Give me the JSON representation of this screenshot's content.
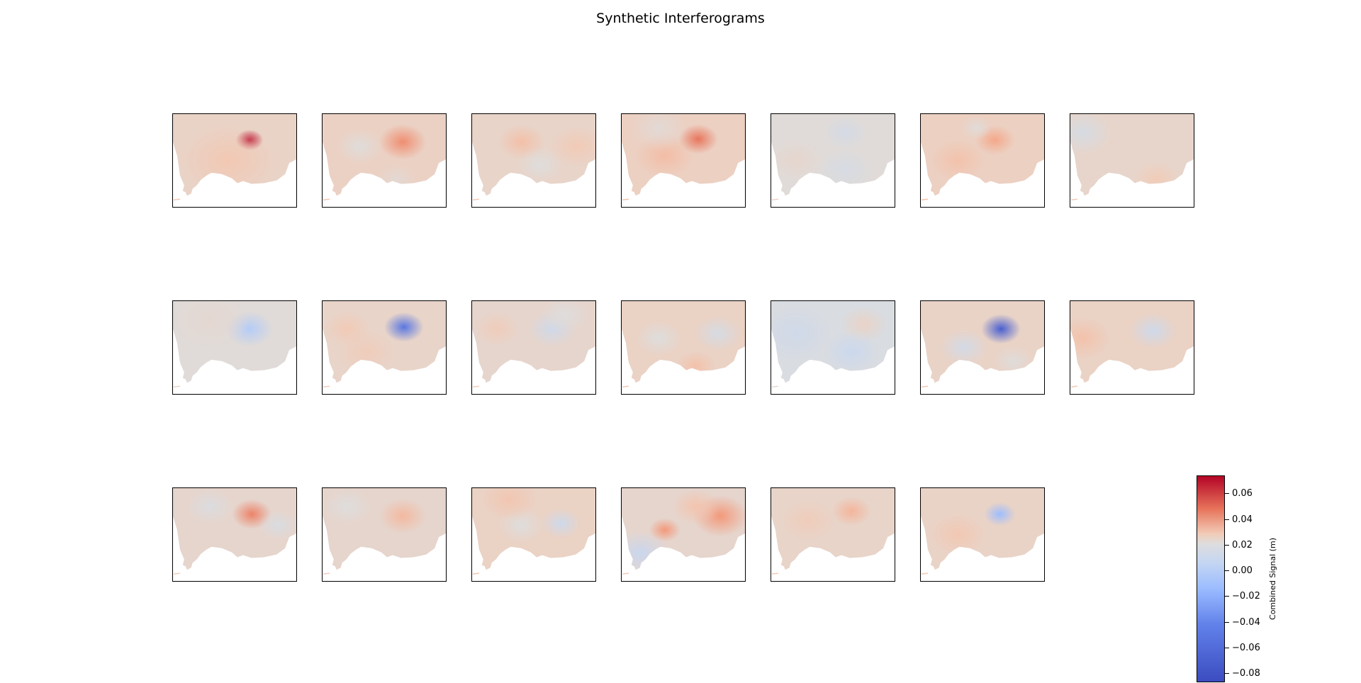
{
  "chart_data": {
    "type": "heatmap",
    "title": "Synthetic Interferograms",
    "grid": "3 rows x 7 columns (20 panels)",
    "colormap": "coolwarm",
    "colors": {
      "cmap_stops": [
        "#3b4cc0",
        "#6282ea",
        "#9abbff",
        "#c5d6f2",
        "#dddddd",
        "#f2cbb7",
        "#f5a080",
        "#e7745b",
        "#b40426"
      ],
      "land": "#dddddd",
      "sea": "#ffffff"
    },
    "colorbar": {
      "label": "Combined Signal (m)",
      "vmin": -0.087,
      "vmax": 0.074,
      "ticks": [
        0.06,
        0.04,
        0.02,
        0.0,
        -0.02,
        -0.04,
        -0.06,
        -0.08
      ],
      "tick_labels": [
        "0.06",
        "0.04",
        "0.02",
        "0.00",
        "−0.02",
        "−0.04",
        "−0.06",
        "−0.08"
      ]
    },
    "panels": [
      {
        "index": 1,
        "base": 0.005,
        "features": [
          [
            0.62,
            0.28,
            0.07,
            0.07
          ],
          [
            0.45,
            0.5,
            0.25,
            0.01
          ]
        ]
      },
      {
        "index": 2,
        "base": 0.007,
        "features": [
          [
            0.65,
            0.3,
            0.12,
            0.035
          ],
          [
            0.3,
            0.35,
            0.12,
            -0.012
          ],
          [
            0.6,
            0.7,
            0.1,
            -0.008
          ]
        ]
      },
      {
        "index": 3,
        "base": 0.004,
        "features": [
          [
            0.4,
            0.3,
            0.12,
            0.015
          ],
          [
            0.55,
            0.55,
            0.12,
            -0.01
          ],
          [
            0.85,
            0.35,
            0.14,
            0.01
          ]
        ]
      },
      {
        "index": 4,
        "base": 0.008,
        "features": [
          [
            0.62,
            0.27,
            0.1,
            0.045
          ],
          [
            0.35,
            0.45,
            0.15,
            0.012
          ],
          [
            0.3,
            0.15,
            0.15,
            -0.01
          ]
        ]
      },
      {
        "index": 5,
        "base": -0.004,
        "features": [
          [
            0.6,
            0.2,
            0.12,
            -0.01
          ],
          [
            0.2,
            0.5,
            0.14,
            0.006
          ],
          [
            0.6,
            0.6,
            0.15,
            -0.008
          ]
        ]
      },
      {
        "index": 6,
        "base": 0.008,
        "features": [
          [
            0.6,
            0.28,
            0.1,
            0.022
          ],
          [
            0.45,
            0.15,
            0.08,
            -0.012
          ],
          [
            0.3,
            0.5,
            0.14,
            0.01
          ]
        ]
      },
      {
        "index": 7,
        "base": 0.003,
        "features": [
          [
            0.1,
            0.2,
            0.15,
            -0.015
          ],
          [
            0.7,
            0.7,
            0.12,
            0.01
          ]
        ]
      },
      {
        "index": 8,
        "base": -0.004,
        "features": [
          [
            0.62,
            0.3,
            0.12,
            -0.03
          ],
          [
            0.3,
            0.2,
            0.2,
            0.004
          ]
        ]
      },
      {
        "index": 9,
        "base": 0.004,
        "features": [
          [
            0.66,
            0.28,
            0.1,
            -0.075
          ],
          [
            0.35,
            0.55,
            0.15,
            0.008
          ],
          [
            0.2,
            0.3,
            0.12,
            0.01
          ]
        ]
      },
      {
        "index": 10,
        "base": 0.002,
        "features": [
          [
            0.65,
            0.3,
            0.12,
            -0.02
          ],
          [
            0.2,
            0.3,
            0.12,
            0.01
          ],
          [
            0.75,
            0.15,
            0.12,
            -0.008
          ]
        ]
      },
      {
        "index": 11,
        "base": 0.006,
        "features": [
          [
            0.78,
            0.35,
            0.12,
            -0.018
          ],
          [
            0.3,
            0.4,
            0.12,
            -0.012
          ],
          [
            0.6,
            0.7,
            0.1,
            0.012
          ]
        ]
      },
      {
        "index": 12,
        "base": -0.01,
        "features": [
          [
            0.75,
            0.25,
            0.12,
            0.015
          ],
          [
            0.65,
            0.55,
            0.14,
            -0.012
          ],
          [
            0.2,
            0.35,
            0.18,
            -0.008
          ]
        ]
      },
      {
        "index": 13,
        "base": 0.005,
        "features": [
          [
            0.65,
            0.3,
            0.1,
            -0.085
          ],
          [
            0.35,
            0.5,
            0.12,
            -0.02
          ],
          [
            0.75,
            0.65,
            0.1,
            -0.01
          ]
        ]
      },
      {
        "index": 14,
        "base": 0.006,
        "features": [
          [
            0.67,
            0.32,
            0.12,
            -0.025
          ],
          [
            0.1,
            0.4,
            0.14,
            0.012
          ]
        ]
      },
      {
        "index": 15,
        "base": 0.002,
        "features": [
          [
            0.64,
            0.28,
            0.1,
            0.045
          ],
          [
            0.3,
            0.2,
            0.12,
            -0.01
          ],
          [
            0.85,
            0.4,
            0.1,
            -0.012
          ]
        ]
      },
      {
        "index": 16,
        "base": 0.002,
        "features": [
          [
            0.65,
            0.3,
            0.12,
            0.02
          ],
          [
            0.2,
            0.2,
            0.12,
            -0.008
          ]
        ]
      },
      {
        "index": 17,
        "base": 0.006,
        "features": [
          [
            0.72,
            0.38,
            0.1,
            -0.025
          ],
          [
            0.4,
            0.4,
            0.12,
            -0.012
          ],
          [
            0.3,
            0.12,
            0.14,
            0.01
          ]
        ]
      },
      {
        "index": 18,
        "base": 0.002,
        "features": [
          [
            0.8,
            0.3,
            0.14,
            0.035
          ],
          [
            0.35,
            0.45,
            0.08,
            0.035
          ],
          [
            0.15,
            0.7,
            0.15,
            -0.025
          ],
          [
            0.6,
            0.2,
            0.12,
            0.015
          ]
        ]
      },
      {
        "index": 19,
        "base": 0.004,
        "features": [
          [
            0.65,
            0.25,
            0.1,
            0.02
          ],
          [
            0.3,
            0.35,
            0.14,
            0.008
          ]
        ]
      },
      {
        "index": 20,
        "base": 0.005,
        "features": [
          [
            0.64,
            0.28,
            0.08,
            -0.05
          ],
          [
            0.3,
            0.5,
            0.15,
            0.01
          ]
        ]
      }
    ]
  }
}
